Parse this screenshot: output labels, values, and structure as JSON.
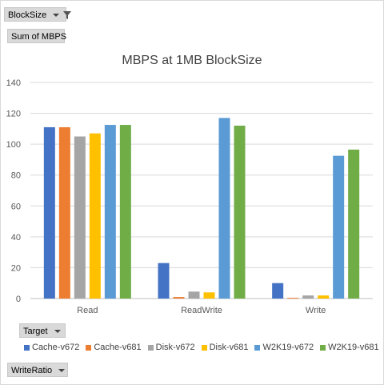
{
  "filters": {
    "blocksize_label": "BlockSize",
    "sum_label": "Sum of MBPS",
    "target_label": "Target",
    "writeratio_label": "WriteRatio"
  },
  "colors": {
    "Cache-v672": "#4472c4",
    "Cache-v681": "#ed7d31",
    "Disk-v672": "#a5a5a5",
    "Disk-v681": "#ffc000",
    "W2K19-v672": "#5b9bd5",
    "W2K19-v681": "#70ad47"
  },
  "chart_data": {
    "type": "bar",
    "title": "MBPS at 1MB BlockSize",
    "categories": [
      "Read",
      "ReadWrite",
      "Write"
    ],
    "series": [
      {
        "name": "Cache-v672",
        "values": [
          111,
          23,
          10
        ]
      },
      {
        "name": "Cache-v681",
        "values": [
          111,
          1,
          0.5
        ]
      },
      {
        "name": "Disk-v672",
        "values": [
          105,
          4.5,
          2
        ]
      },
      {
        "name": "Disk-v681",
        "values": [
          107,
          4,
          2
        ]
      },
      {
        "name": "W2K19-v672",
        "values": [
          112.5,
          117,
          92.5
        ]
      },
      {
        "name": "W2K19-v681",
        "values": [
          112.5,
          112,
          96.5
        ]
      }
    ],
    "ylim": [
      0,
      140
    ],
    "yticks": [
      0,
      20,
      40,
      60,
      80,
      100,
      120,
      140
    ],
    "grid": true,
    "legend": "bottom"
  }
}
